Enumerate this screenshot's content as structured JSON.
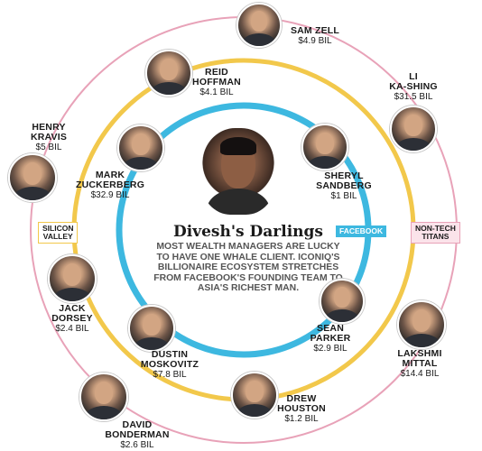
{
  "title": "Divesh's Darlings",
  "blurb": "MOST WEALTH MANAGERS ARE LUCKY TO HAVE ONE WHALE CLIENT. ICONIQ'S BILLIONAIRE ECOSYSTEM STRETCHES FROM FACEBOOK'S FOUNDING TEAM TO ASIA'S RICHEST MAN.",
  "rings": {
    "facebook": {
      "label": "FACEBOOK",
      "color": "#3db8e0"
    },
    "silicon_valley": {
      "label_line1": "SILICON",
      "label_line2": "VALLEY",
      "color": "#f2c84b"
    },
    "non_tech_titans": {
      "label_line1": "NON-TECH",
      "label_line2": "TITANS",
      "color": "#e8a2b8"
    }
  },
  "people": {
    "sam_zell": {
      "name": "SAM ZELL",
      "worth": "$4.9 BIL"
    },
    "li_ka_shing": {
      "name_line1": "LI",
      "name_line2": "KA-SHING",
      "worth": "$31.5 BIL"
    },
    "reid_hoffman": {
      "name_line1": "REID",
      "name_line2": "HOFFMAN",
      "worth": "$4.1 BIL"
    },
    "henry_kravis": {
      "name_line1": "HENRY",
      "name_line2": "KRAVIS",
      "worth": "$5 BIL"
    },
    "mark_zuckerberg": {
      "name_line1": "MARK",
      "name_line2": "ZUCKERBERG",
      "worth": "$32.9 BIL"
    },
    "sheryl_sandberg": {
      "name_line1": "SHERYL",
      "name_line2": "SANDBERG",
      "worth": "$1 BIL"
    },
    "jack_dorsey": {
      "name_line1": "JACK",
      "name_line2": "DORSEY",
      "worth": "$2.4 BIL"
    },
    "sean_parker": {
      "name_line1": "SEAN",
      "name_line2": "PARKER",
      "worth": "$2.9 BIL"
    },
    "dustin_moskovitz": {
      "name_line1": "DUSTIN",
      "name_line2": "MOSKOVITZ",
      "worth": "$7.8 BIL"
    },
    "lakshmi_mittal": {
      "name_line1": "LAKSHMI",
      "name_line2": "MITTAL",
      "worth": "$14.4 BIL"
    },
    "drew_houston": {
      "name_line1": "DREW",
      "name_line2": "HOUSTON",
      "worth": "$1.2 BIL"
    },
    "david_bonderman": {
      "name_line1": "DAVID",
      "name_line2": "BONDERMAN",
      "worth": "$2.6 BIL"
    }
  },
  "icons": [
    "person-portrait-icon"
  ]
}
